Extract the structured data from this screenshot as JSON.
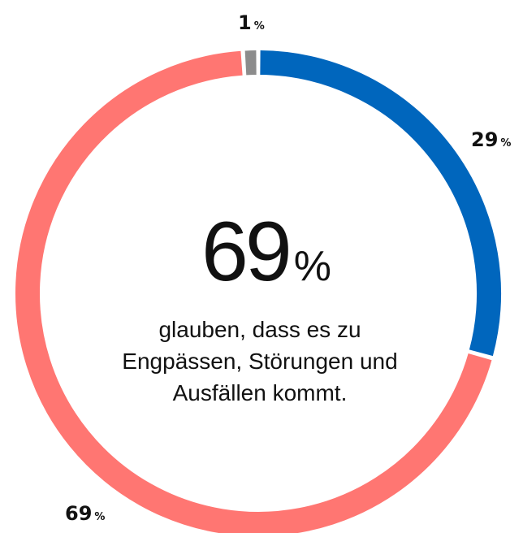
{
  "chart_data": {
    "type": "donut",
    "values": [
      29,
      69,
      1
    ],
    "colors": [
      "#0066bd",
      "#ff7672",
      "#8c8c8c"
    ],
    "unit": "%",
    "center_value": 69,
    "caption": [
      "glauben, dass es zu",
      "Engpässen, Störungen und",
      "Ausfällen kommt."
    ]
  }
}
